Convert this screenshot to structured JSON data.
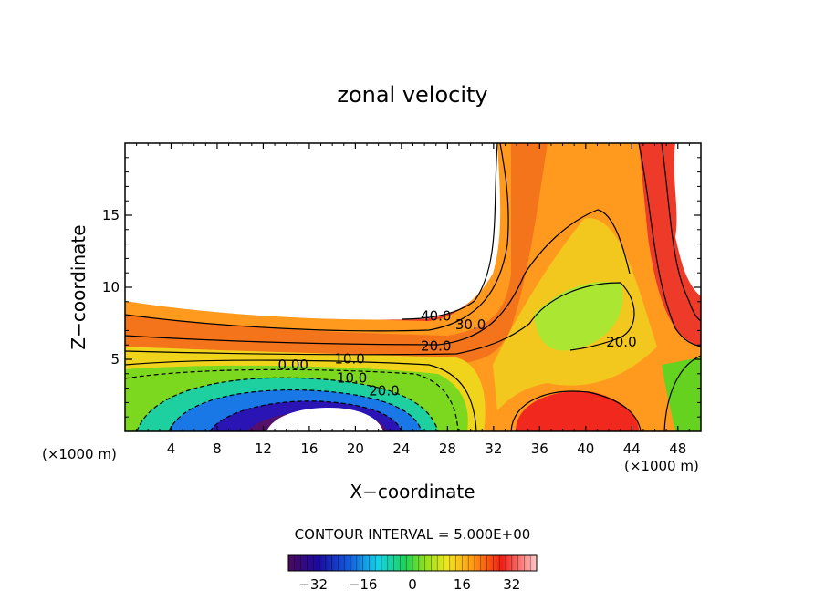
{
  "chart_data": {
    "type": "heatmap",
    "title": "zonal velocity",
    "xlabel": "X−coordinate",
    "ylabel": "Z−coordinate",
    "x_unit_left": "(×1000 m)",
    "x_unit_right": "(×1000 m)",
    "xlim": [
      0,
      50
    ],
    "ylim": [
      0,
      20
    ],
    "x_ticks": [
      4,
      8,
      12,
      16,
      20,
      24,
      28,
      32,
      36,
      40,
      44,
      48
    ],
    "y_ticks": [
      5,
      10,
      15
    ],
    "contour_interval_label": "CONTOUR INTERVAL = 5.000E+00",
    "contour_labels": [
      {
        "text": "40.0",
        "x": 27.0,
        "y": 7.7
      },
      {
        "text": "30.0",
        "x": 30.0,
        "y": 7.1
      },
      {
        "text": "20.0",
        "x": 27.0,
        "y": 5.6
      },
      {
        "text": "10.0",
        "x": 19.5,
        "y": 4.7
      },
      {
        "text": "0.00",
        "x": 14.6,
        "y": 4.3
      },
      {
        "text": "10.0",
        "x": 19.7,
        "y": 3.4
      },
      {
        "text": "20.0",
        "x": 22.5,
        "y": 2.5
      },
      {
        "text": "20.0",
        "x": 43.1,
        "y": 5.9
      }
    ],
    "colorbar": {
      "range": [
        -40,
        40
      ],
      "ticks": [
        "−32",
        "−16",
        "0",
        "16",
        "32"
      ],
      "tick_values": [
        -32,
        -16,
        0,
        16,
        32
      ]
    }
  }
}
